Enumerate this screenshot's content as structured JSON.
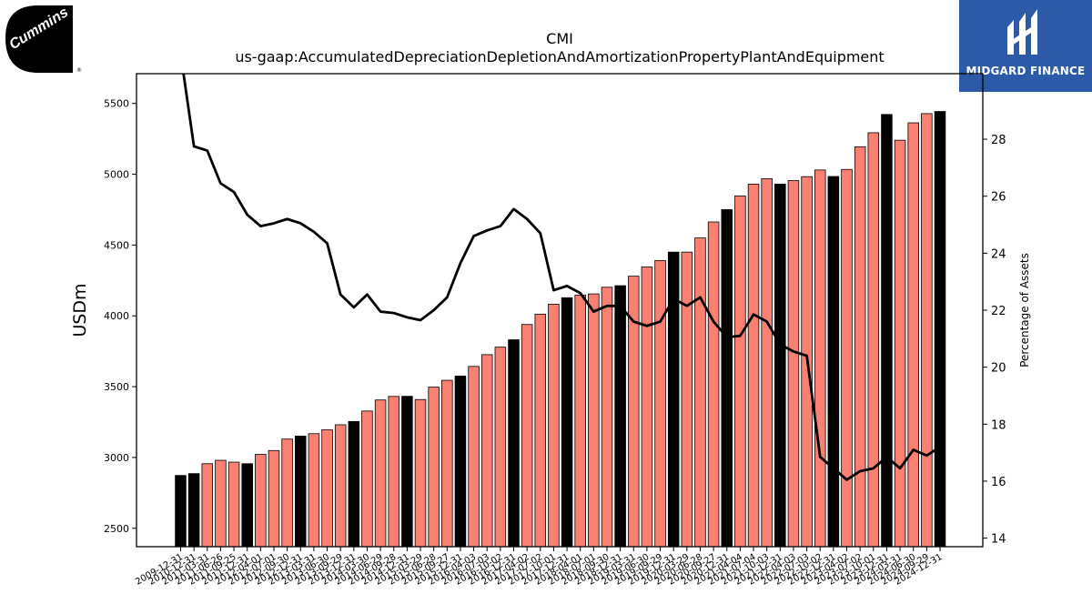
{
  "logos": {
    "left": {
      "text": "Cummins",
      "mark": "®"
    },
    "right": {
      "text": "MIDGARD FINANCE"
    }
  },
  "chart_data": {
    "type": "bar",
    "title": "CMI",
    "subtitle": "us-gaap:AccumulatedDepreciationDepletionAndAmortizationPropertyPlantAndEquipment",
    "ylabel": "USDm",
    "y2label": "Percentage of Assets",
    "ylim": [
      2370,
      5710
    ],
    "y2lim": [
      13.7,
      30.3
    ],
    "yticks": [
      2500,
      3000,
      3500,
      4000,
      4500,
      5000,
      5500
    ],
    "y2ticks": [
      14,
      16,
      18,
      20,
      22,
      24,
      26,
      28
    ],
    "colors": {
      "annual": "#000000",
      "quarterly": "#fa8072",
      "line": "#000000"
    },
    "categories": [
      "2009-12-31",
      "2010-12-31",
      "2011-03-31",
      "2011-06-26",
      "2011-09-25",
      "2011-12-31",
      "2012-04-01",
      "2012-07-01",
      "2012-09-30",
      "2012-12-31",
      "2013-03-31",
      "2013-06-30",
      "2013-09-29",
      "2013-12-31",
      "2014-03-30",
      "2014-06-29",
      "2014-09-28",
      "2014-12-31",
      "2015-03-29",
      "2015-06-28",
      "2015-09-27",
      "2015-12-31",
      "2016-04-03",
      "2016-07-03",
      "2016-10-02",
      "2016-12-31",
      "2017-04-02",
      "2017-07-02",
      "2017-10-01",
      "2017-12-31",
      "2018-04-01",
      "2018-07-01",
      "2018-09-30",
      "2018-12-31",
      "2019-03-31",
      "2019-06-30",
      "2019-09-29",
      "2019-12-31",
      "2020-03-29",
      "2020-06-28",
      "2020-09-27",
      "2020-12-31",
      "2021-04-04",
      "2021-07-04",
      "2021-10-03",
      "2021-12-31",
      "2022-04-03",
      "2022-07-03",
      "2022-10-02",
      "2022-12-31",
      "2023-04-02",
      "2023-07-02",
      "2023-10-01",
      "2023-12-31",
      "2024-03-31",
      "2024-06-30",
      "2024-09-29",
      "2024-12-31"
    ],
    "series": [
      {
        "name": "",
        "type": "bar",
        "annual": [
          1,
          1,
          0,
          0,
          0,
          1,
          0,
          0,
          0,
          1,
          0,
          0,
          0,
          1,
          0,
          0,
          0,
          1,
          0,
          0,
          0,
          1,
          0,
          0,
          0,
          1,
          0,
          0,
          0,
          1,
          0,
          0,
          0,
          1,
          0,
          0,
          0,
          1,
          0,
          0,
          0,
          1,
          0,
          0,
          0,
          1,
          0,
          0,
          0,
          1,
          0,
          0,
          0,
          1,
          0,
          0,
          0,
          1
        ],
        "values": [
          2873,
          2886,
          2956,
          2980,
          2967,
          2956,
          3022,
          3049,
          3130,
          3151,
          3168,
          3195,
          3231,
          3254,
          3328,
          3406,
          3431,
          3432,
          3409,
          3497,
          3545,
          3575,
          3643,
          3726,
          3779,
          3831,
          3939,
          4012,
          4082,
          4128,
          4147,
          4155,
          4202,
          4213,
          4280,
          4345,
          4391,
          4450,
          4450,
          4550,
          4663,
          4750,
          4847,
          4930,
          4969,
          4930,
          4955,
          4983,
          5030,
          4984,
          5034,
          5194,
          5293,
          5422,
          5240,
          5363,
          5428,
          5443
        ]
      },
      {
        "name": "",
        "type": "line",
        "axis": "y2",
        "values": [
          31.0,
          27.75,
          27.6,
          26.45,
          26.15,
          25.35,
          24.95,
          25.05,
          25.2,
          25.05,
          24.75,
          24.35,
          22.55,
          22.1,
          22.55,
          21.95,
          21.9,
          21.75,
          21.65,
          22.0,
          22.45,
          23.65,
          24.6,
          24.8,
          24.95,
          25.55,
          25.2,
          24.7,
          22.7,
          22.85,
          22.6,
          21.95,
          22.15,
          22.15,
          21.6,
          21.45,
          21.6,
          22.4,
          22.15,
          22.45,
          21.6,
          21.05,
          21.1,
          21.85,
          21.6,
          20.8,
          20.55,
          20.4,
          16.85,
          16.45,
          16.05,
          16.35,
          16.45,
          16.85,
          16.45,
          17.1,
          16.9,
          17.2
        ]
      }
    ]
  }
}
